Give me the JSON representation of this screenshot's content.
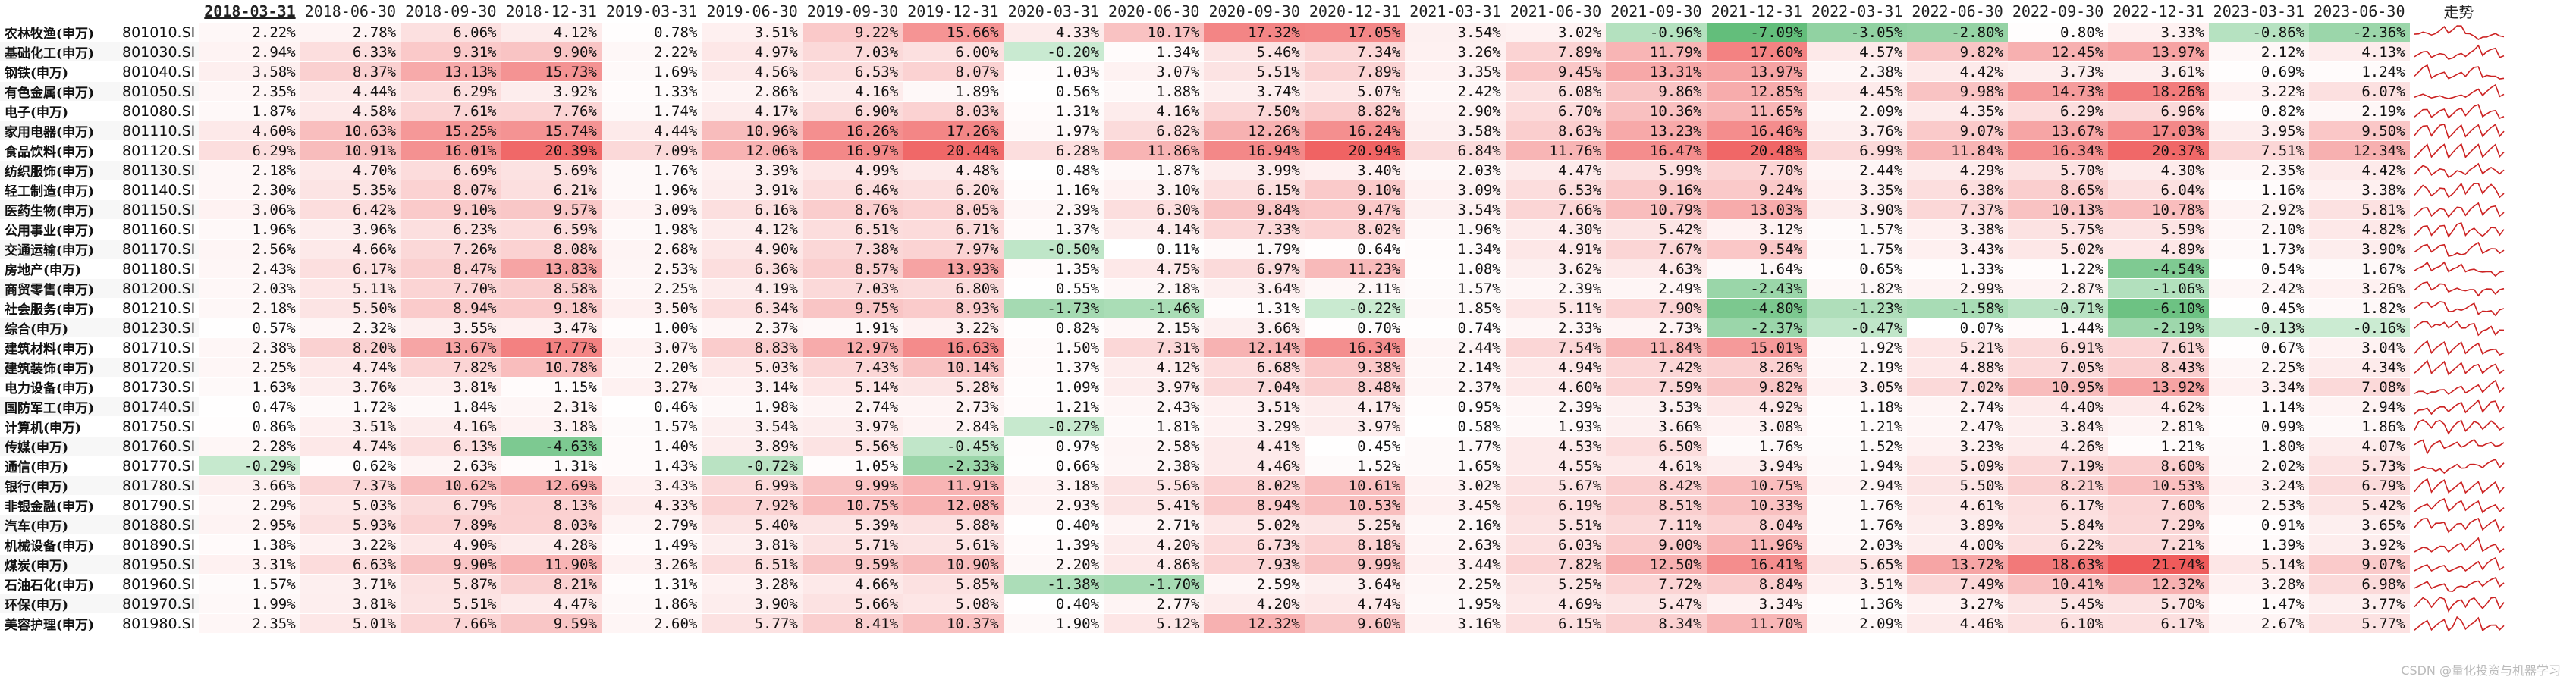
{
  "colors": {
    "positive_max": "#ef5b5b",
    "negative_max": "#4fb56a",
    "neutral": "#ffffff",
    "sparkline": "#cc2222"
  },
  "header": {
    "dates": [
      "2018-03-31",
      "2018-06-30",
      "2018-09-30",
      "2018-12-31",
      "2019-03-31",
      "2019-06-30",
      "2019-09-30",
      "2019-12-31",
      "2020-03-31",
      "2020-06-30",
      "2020-09-30",
      "2020-12-31",
      "2021-03-31",
      "2021-06-30",
      "2021-09-30",
      "2021-12-31",
      "2022-03-31",
      "2022-06-30",
      "2022-09-30",
      "2022-12-31",
      "2023-03-31",
      "2023-06-30"
    ],
    "trend_label": "走势",
    "sorted_column_index": 0
  },
  "rows": [
    {
      "name": "农林牧渔(申万)",
      "code": "801010.SI",
      "values": [
        "2.22%",
        "2.78%",
        "6.06%",
        "4.12%",
        "0.78%",
        "3.51%",
        "9.22%",
        "15.66%",
        "4.33%",
        "10.17%",
        "17.32%",
        "17.05%",
        "3.54%",
        "3.02%",
        "-0.96%",
        "-7.09%",
        "-3.05%",
        "-2.80%",
        "0.80%",
        "3.33%",
        "-0.86%",
        "-2.36%"
      ]
    },
    {
      "name": "基础化工(申万)",
      "code": "801030.SI",
      "values": [
        "2.94%",
        "6.33%",
        "9.31%",
        "9.90%",
        "2.22%",
        "4.97%",
        "7.03%",
        "6.00%",
        "-0.20%",
        "1.34%",
        "5.46%",
        "7.34%",
        "3.26%",
        "7.89%",
        "11.79%",
        "17.60%",
        "4.57%",
        "9.82%",
        "12.45%",
        "13.97%",
        "2.12%",
        "4.13%"
      ]
    },
    {
      "name": "钢铁(申万)",
      "code": "801040.SI",
      "values": [
        "3.58%",
        "8.37%",
        "13.13%",
        "15.73%",
        "1.69%",
        "4.56%",
        "6.53%",
        "8.07%",
        "1.03%",
        "3.07%",
        "5.51%",
        "7.89%",
        "3.35%",
        "9.45%",
        "13.31%",
        "13.97%",
        "2.38%",
        "4.42%",
        "3.73%",
        "3.61%",
        "0.69%",
        "1.24%"
      ]
    },
    {
      "name": "有色金属(申万)",
      "code": "801050.SI",
      "values": [
        "2.35%",
        "4.44%",
        "6.29%",
        "3.92%",
        "1.33%",
        "2.86%",
        "4.16%",
        "1.89%",
        "0.56%",
        "1.88%",
        "3.74%",
        "5.07%",
        "2.42%",
        "6.08%",
        "9.86%",
        "12.85%",
        "4.45%",
        "9.98%",
        "14.73%",
        "18.26%",
        "3.22%",
        "6.07%"
      ]
    },
    {
      "name": "电子(申万)",
      "code": "801080.SI",
      "values": [
        "1.87%",
        "4.58%",
        "7.61%",
        "7.76%",
        "1.74%",
        "4.17%",
        "6.90%",
        "8.03%",
        "1.31%",
        "4.16%",
        "7.50%",
        "8.82%",
        "2.90%",
        "6.70%",
        "10.36%",
        "11.65%",
        "2.09%",
        "4.35%",
        "6.29%",
        "6.96%",
        "0.82%",
        "2.19%"
      ]
    },
    {
      "name": "家用电器(申万)",
      "code": "801110.SI",
      "values": [
        "4.60%",
        "10.63%",
        "15.25%",
        "15.74%",
        "4.44%",
        "10.96%",
        "16.26%",
        "17.26%",
        "1.97%",
        "6.82%",
        "12.26%",
        "16.24%",
        "3.58%",
        "8.63%",
        "13.23%",
        "16.46%",
        "3.76%",
        "9.07%",
        "13.67%",
        "17.03%",
        "3.95%",
        "9.50%"
      ]
    },
    {
      "name": "食品饮料(申万)",
      "code": "801120.SI",
      "values": [
        "6.29%",
        "10.91%",
        "16.01%",
        "20.39%",
        "7.09%",
        "12.06%",
        "16.97%",
        "20.44%",
        "6.28%",
        "11.86%",
        "16.94%",
        "20.94%",
        "6.84%",
        "11.76%",
        "16.47%",
        "20.48%",
        "6.99%",
        "11.84%",
        "16.34%",
        "20.37%",
        "7.51%",
        "12.34%"
      ]
    },
    {
      "name": "纺织服饰(申万)",
      "code": "801130.SI",
      "values": [
        "2.18%",
        "4.70%",
        "6.69%",
        "5.69%",
        "1.76%",
        "3.39%",
        "4.99%",
        "4.48%",
        "0.48%",
        "1.87%",
        "3.99%",
        "3.40%",
        "2.03%",
        "4.47%",
        "5.99%",
        "7.70%",
        "2.44%",
        "4.29%",
        "5.70%",
        "4.30%",
        "2.35%",
        "4.42%"
      ]
    },
    {
      "name": "轻工制造(申万)",
      "code": "801140.SI",
      "values": [
        "2.30%",
        "5.35%",
        "8.07%",
        "6.21%",
        "1.96%",
        "3.91%",
        "6.46%",
        "6.20%",
        "1.16%",
        "3.10%",
        "6.15%",
        "9.10%",
        "3.09%",
        "6.53%",
        "9.16%",
        "9.24%",
        "3.35%",
        "6.38%",
        "8.65%",
        "6.04%",
        "1.16%",
        "3.38%"
      ]
    },
    {
      "name": "医药生物(申万)",
      "code": "801150.SI",
      "values": [
        "3.06%",
        "6.42%",
        "9.10%",
        "9.57%",
        "3.09%",
        "6.16%",
        "8.76%",
        "8.05%",
        "2.39%",
        "6.30%",
        "9.84%",
        "9.47%",
        "3.54%",
        "7.66%",
        "10.79%",
        "13.03%",
        "3.90%",
        "7.37%",
        "10.13%",
        "10.78%",
        "2.92%",
        "5.81%"
      ]
    },
    {
      "name": "公用事业(申万)",
      "code": "801160.SI",
      "values": [
        "1.96%",
        "3.96%",
        "6.23%",
        "6.59%",
        "1.98%",
        "4.12%",
        "6.51%",
        "6.71%",
        "1.37%",
        "4.14%",
        "7.33%",
        "8.02%",
        "1.96%",
        "4.30%",
        "5.42%",
        "3.12%",
        "1.57%",
        "3.38%",
        "5.75%",
        "5.59%",
        "2.10%",
        "4.82%"
      ]
    },
    {
      "name": "交通运输(申万)",
      "code": "801170.SI",
      "values": [
        "2.56%",
        "4.66%",
        "7.26%",
        "8.08%",
        "2.68%",
        "4.90%",
        "7.38%",
        "7.97%",
        "-0.50%",
        "0.11%",
        "1.79%",
        "0.64%",
        "1.34%",
        "4.91%",
        "7.67%",
        "9.54%",
        "1.75%",
        "3.43%",
        "5.02%",
        "4.89%",
        "1.73%",
        "3.90%"
      ]
    },
    {
      "name": "房地产(申万)",
      "code": "801180.SI",
      "values": [
        "2.43%",
        "6.17%",
        "8.47%",
        "13.83%",
        "2.53%",
        "6.36%",
        "8.57%",
        "13.93%",
        "1.35%",
        "4.75%",
        "6.97%",
        "11.23%",
        "1.08%",
        "3.62%",
        "4.63%",
        "1.64%",
        "0.65%",
        "1.33%",
        "1.22%",
        "-4.54%",
        "0.54%",
        "1.67%"
      ]
    },
    {
      "name": "商贸零售(申万)",
      "code": "801200.SI",
      "values": [
        "2.03%",
        "5.11%",
        "7.70%",
        "8.58%",
        "2.25%",
        "4.19%",
        "7.03%",
        "6.80%",
        "0.55%",
        "2.18%",
        "3.64%",
        "2.11%",
        "1.57%",
        "2.39%",
        "2.49%",
        "-2.43%",
        "1.82%",
        "2.99%",
        "2.87%",
        "-1.06%",
        "2.42%",
        "3.26%"
      ]
    },
    {
      "name": "社会服务(申万)",
      "code": "801210.SI",
      "values": [
        "2.18%",
        "5.50%",
        "8.94%",
        "9.18%",
        "3.50%",
        "6.34%",
        "9.75%",
        "8.93%",
        "-1.73%",
        "-1.46%",
        "1.31%",
        "-0.22%",
        "1.85%",
        "5.11%",
        "7.90%",
        "-4.80%",
        "-1.23%",
        "-1.58%",
        "-0.71%",
        "-6.10%",
        "0.45%",
        "1.82%"
      ]
    },
    {
      "name": "综合(申万)",
      "code": "801230.SI",
      "values": [
        "0.57%",
        "2.32%",
        "3.55%",
        "3.47%",
        "1.00%",
        "2.37%",
        "1.91%",
        "3.22%",
        "0.82%",
        "2.15%",
        "3.66%",
        "0.70%",
        "0.74%",
        "2.33%",
        "2.73%",
        "-2.37%",
        "-0.47%",
        "0.07%",
        "1.44%",
        "-2.19%",
        "-0.13%",
        "-0.16%"
      ]
    },
    {
      "name": "建筑材料(申万)",
      "code": "801710.SI",
      "values": [
        "2.38%",
        "8.20%",
        "13.67%",
        "17.77%",
        "3.07%",
        "8.83%",
        "12.97%",
        "16.63%",
        "1.50%",
        "7.31%",
        "12.14%",
        "16.34%",
        "2.44%",
        "7.54%",
        "11.84%",
        "15.01%",
        "1.92%",
        "5.21%",
        "6.91%",
        "7.61%",
        "0.67%",
        "3.04%"
      ]
    },
    {
      "name": "建筑装饰(申万)",
      "code": "801720.SI",
      "values": [
        "2.25%",
        "4.74%",
        "7.82%",
        "10.78%",
        "2.20%",
        "5.03%",
        "7.43%",
        "10.14%",
        "1.37%",
        "4.12%",
        "6.68%",
        "9.38%",
        "2.14%",
        "4.94%",
        "7.42%",
        "8.26%",
        "2.19%",
        "4.88%",
        "7.05%",
        "8.43%",
        "2.25%",
        "4.34%"
      ]
    },
    {
      "name": "电力设备(申万)",
      "code": "801730.SI",
      "values": [
        "1.63%",
        "3.76%",
        "3.81%",
        "1.15%",
        "3.27%",
        "3.14%",
        "5.14%",
        "5.28%",
        "1.09%",
        "3.97%",
        "7.04%",
        "8.48%",
        "2.37%",
        "4.60%",
        "7.59%",
        "9.82%",
        "3.05%",
        "7.02%",
        "10.95%",
        "13.92%",
        "3.34%",
        "7.08%"
      ]
    },
    {
      "name": "国防军工(申万)",
      "code": "801740.SI",
      "values": [
        "0.47%",
        "1.72%",
        "1.84%",
        "2.31%",
        "0.46%",
        "1.98%",
        "2.74%",
        "2.73%",
        "1.21%",
        "2.43%",
        "3.51%",
        "4.17%",
        "0.95%",
        "2.39%",
        "3.53%",
        "4.92%",
        "1.18%",
        "2.74%",
        "4.40%",
        "4.62%",
        "1.14%",
        "2.94%"
      ]
    },
    {
      "name": "计算机(申万)",
      "code": "801750.SI",
      "values": [
        "0.86%",
        "3.51%",
        "4.16%",
        "3.18%",
        "1.57%",
        "3.54%",
        "3.97%",
        "2.84%",
        "-0.27%",
        "1.81%",
        "3.29%",
        "3.97%",
        "0.58%",
        "1.93%",
        "3.66%",
        "3.08%",
        "1.21%",
        "2.47%",
        "3.84%",
        "2.81%",
        "0.99%",
        "1.86%"
      ]
    },
    {
      "name": "传媒(申万)",
      "code": "801760.SI",
      "values": [
        "2.28%",
        "4.74%",
        "6.13%",
        "-4.63%",
        "1.40%",
        "3.89%",
        "5.56%",
        "-0.45%",
        "0.97%",
        "2.58%",
        "4.41%",
        "0.45%",
        "1.77%",
        "4.53%",
        "6.50%",
        "1.76%",
        "1.52%",
        "3.23%",
        "4.26%",
        "1.21%",
        "1.80%",
        "4.07%"
      ]
    },
    {
      "name": "通信(申万)",
      "code": "801770.SI",
      "values": [
        "-0.29%",
        "0.62%",
        "2.63%",
        "1.31%",
        "1.43%",
        "-0.72%",
        "1.05%",
        "-2.33%",
        "0.66%",
        "2.38%",
        "4.46%",
        "1.52%",
        "1.65%",
        "4.55%",
        "4.61%",
        "3.94%",
        "1.94%",
        "5.09%",
        "7.19%",
        "8.60%",
        "2.02%",
        "5.73%"
      ]
    },
    {
      "name": "银行(申万)",
      "code": "801780.SI",
      "values": [
        "3.66%",
        "7.37%",
        "10.62%",
        "12.69%",
        "3.43%",
        "6.99%",
        "9.99%",
        "11.91%",
        "3.18%",
        "5.56%",
        "8.02%",
        "10.61%",
        "3.02%",
        "5.67%",
        "8.42%",
        "10.75%",
        "2.94%",
        "5.50%",
        "8.21%",
        "10.53%",
        "3.24%",
        "6.79%"
      ]
    },
    {
      "name": "非银金融(申万)",
      "code": "801790.SI",
      "values": [
        "2.29%",
        "5.03%",
        "6.79%",
        "8.13%",
        "4.33%",
        "7.92%",
        "10.75%",
        "12.08%",
        "2.93%",
        "5.41%",
        "8.94%",
        "10.53%",
        "3.45%",
        "6.19%",
        "8.51%",
        "10.33%",
        "1.76%",
        "4.61%",
        "6.17%",
        "7.60%",
        "2.53%",
        "5.42%"
      ]
    },
    {
      "name": "汽车(申万)",
      "code": "801880.SI",
      "values": [
        "2.95%",
        "5.93%",
        "7.89%",
        "8.03%",
        "2.79%",
        "5.40%",
        "5.39%",
        "5.88%",
        "0.40%",
        "2.71%",
        "5.02%",
        "5.25%",
        "2.16%",
        "5.51%",
        "7.11%",
        "8.04%",
        "1.76%",
        "3.89%",
        "5.84%",
        "7.29%",
        "0.91%",
        "3.65%"
      ]
    },
    {
      "name": "机械设备(申万)",
      "code": "801890.SI",
      "values": [
        "1.38%",
        "3.22%",
        "4.90%",
        "4.28%",
        "1.49%",
        "3.81%",
        "5.71%",
        "5.61%",
        "1.39%",
        "4.20%",
        "6.73%",
        "8.18%",
        "2.63%",
        "6.03%",
        "9.00%",
        "11.96%",
        "2.03%",
        "4.00%",
        "6.22%",
        "7.21%",
        "1.39%",
        "3.92%"
      ]
    },
    {
      "name": "煤炭(申万)",
      "code": "801950.SI",
      "values": [
        "3.31%",
        "6.63%",
        "9.90%",
        "11.90%",
        "3.26%",
        "6.51%",
        "9.59%",
        "10.90%",
        "2.20%",
        "4.86%",
        "7.93%",
        "9.99%",
        "3.44%",
        "7.82%",
        "12.50%",
        "16.41%",
        "5.65%",
        "13.72%",
        "18.63%",
        "21.74%",
        "5.14%",
        "9.07%"
      ]
    },
    {
      "name": "石油石化(申万)",
      "code": "801960.SI",
      "values": [
        "1.57%",
        "3.71%",
        "5.87%",
        "8.21%",
        "1.31%",
        "3.28%",
        "4.66%",
        "5.85%",
        "-1.38%",
        "-1.70%",
        "2.59%",
        "3.64%",
        "2.25%",
        "5.25%",
        "7.72%",
        "8.84%",
        "3.51%",
        "7.49%",
        "10.41%",
        "12.32%",
        "3.28%",
        "6.98%"
      ]
    },
    {
      "name": "环保(申万)",
      "code": "801970.SI",
      "values": [
        "1.99%",
        "3.81%",
        "5.51%",
        "4.47%",
        "1.86%",
        "3.90%",
        "5.66%",
        "5.08%",
        "0.40%",
        "2.77%",
        "4.20%",
        "4.74%",
        "1.95%",
        "4.69%",
        "5.47%",
        "3.34%",
        "1.36%",
        "3.27%",
        "5.45%",
        "5.70%",
        "1.47%",
        "3.77%"
      ]
    },
    {
      "name": "美容护理(申万)",
      "code": "801980.SI",
      "values": [
        "2.35%",
        "5.01%",
        "7.66%",
        "9.59%",
        "2.60%",
        "5.77%",
        "8.41%",
        "10.37%",
        "1.90%",
        "5.12%",
        "12.32%",
        "9.60%",
        "3.16%",
        "6.15%",
        "8.34%",
        "11.70%",
        "2.09%",
        "4.46%",
        "6.10%",
        "6.17%",
        "2.67%",
        "5.77%"
      ]
    }
  ],
  "watermark": "CSDN @量化投资与机器学习"
}
